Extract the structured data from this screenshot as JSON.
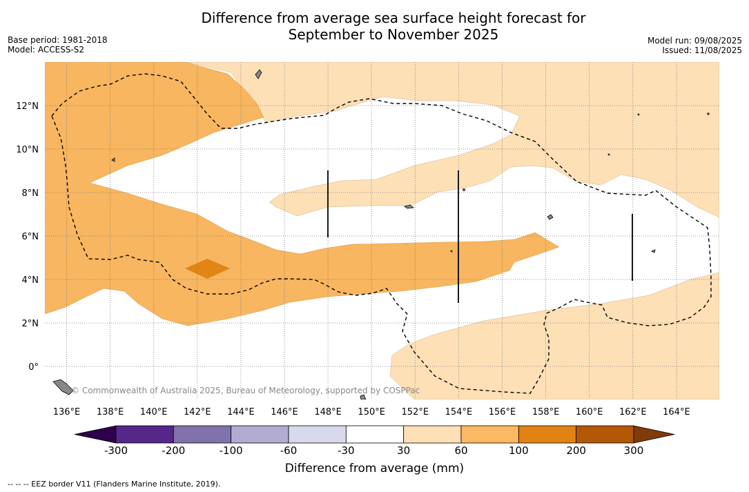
{
  "header": {
    "title_line1": "Difference from average sea surface height forecast for",
    "title_line2": "September to November 2025",
    "base_period": "Base period: 1981-2018",
    "model": "Model: ACCESS-S2",
    "model_run": "Model run: 09/08/2025",
    "issued": "Issued: 11/08/2025"
  },
  "map": {
    "x_ticks": [
      "136°E",
      "138°E",
      "140°E",
      "142°E",
      "144°E",
      "146°E",
      "148°E",
      "150°E",
      "152°E",
      "154°E",
      "156°E",
      "158°E",
      "160°E",
      "162°E",
      "164°E"
    ],
    "y_ticks": [
      "12°N",
      "10°N",
      "8°N",
      "6°N",
      "4°N",
      "2°N",
      "0°"
    ],
    "credit": "© Commonwealth of Australia 2025, Bureau of Meteorology, supported by COSPPac",
    "category_colors": {
      "30_to_60": "#fde0b6",
      "60_to_100": "#f8b660",
      "100_to_200": "#e08516"
    }
  },
  "colorbar": {
    "label": "Difference from average (mm)",
    "ticks": [
      "-300",
      "-200",
      "-100",
      "-60",
      "-30",
      "30",
      "60",
      "100",
      "200",
      "300"
    ],
    "colors": [
      "#542788",
      "#8073ac",
      "#b2abd2",
      "#d8daeb",
      "#ffffff",
      "#fee0b6",
      "#fdb863",
      "#e08214",
      "#b35806"
    ],
    "under_color": "#2d004b",
    "over_color": "#7f3b08"
  },
  "footnote": "--  --  -- EEZ border V11 (Flanders Marine Institute, 2019)."
}
